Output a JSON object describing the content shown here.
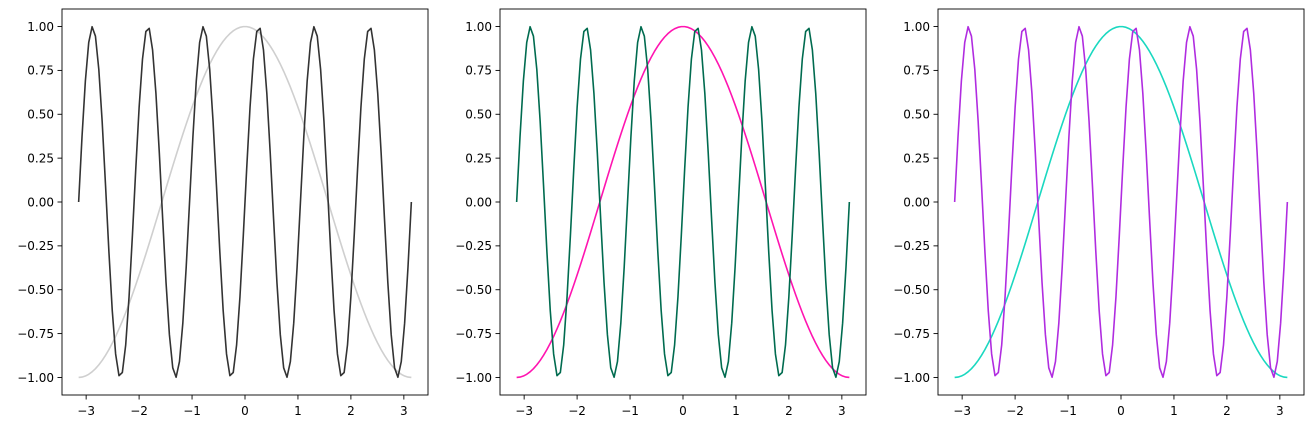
{
  "chart_data": [
    {
      "type": "line",
      "title": "",
      "xlabel": "",
      "ylabel": "",
      "xlim": [
        -3.456,
        3.456
      ],
      "ylim": [
        -1.1,
        1.1
      ],
      "xticks": [
        -3,
        -2,
        -1,
        0,
        1,
        2,
        3
      ],
      "yticks": [
        -1.0,
        -0.75,
        -0.5,
        -0.25,
        0.0,
        0.25,
        0.5,
        0.75,
        1.0
      ],
      "xtick_labels": [
        "−3",
        "−2",
        "−1",
        "0",
        "1",
        "2",
        "3"
      ],
      "ytick_labels": [
        "−1.00",
        "−0.75",
        "−0.50",
        "−0.25",
        "0.00",
        "0.25",
        "0.50",
        "0.75",
        "1.00"
      ],
      "grid": false,
      "series": [
        {
          "function": "cos(x)",
          "x_range": [
            -3.14159,
            3.14159
          ],
          "points": 100,
          "color": "#cfcfcf"
        },
        {
          "function": "sin(6x)",
          "x_range": [
            -3.14159,
            3.14159
          ],
          "points": 100,
          "color": "#333333"
        }
      ]
    },
    {
      "type": "line",
      "title": "",
      "xlabel": "",
      "ylabel": "",
      "xlim": [
        -3.456,
        3.456
      ],
      "ylim": [
        -1.1,
        1.1
      ],
      "xticks": [
        -3,
        -2,
        -1,
        0,
        1,
        2,
        3
      ],
      "yticks": [
        -1.0,
        -0.75,
        -0.5,
        -0.25,
        0.0,
        0.25,
        0.5,
        0.75,
        1.0
      ],
      "xtick_labels": [
        "−3",
        "−2",
        "−1",
        "0",
        "1",
        "2",
        "3"
      ],
      "ytick_labels": [
        "−1.00",
        "−0.75",
        "−0.50",
        "−0.25",
        "0.00",
        "0.25",
        "0.50",
        "0.75",
        "1.00"
      ],
      "grid": false,
      "series": [
        {
          "function": "cos(x)",
          "x_range": [
            -3.14159,
            3.14159
          ],
          "points": 100,
          "color": "#ff14b0"
        },
        {
          "function": "sin(6x)",
          "x_range": [
            -3.14159,
            3.14159
          ],
          "points": 100,
          "color": "#006b4f"
        }
      ]
    },
    {
      "type": "line",
      "title": "",
      "xlabel": "",
      "ylabel": "",
      "xlim": [
        -3.456,
        3.456
      ],
      "ylim": [
        -1.1,
        1.1
      ],
      "xticks": [
        -3,
        -2,
        -1,
        0,
        1,
        2,
        3
      ],
      "yticks": [
        -1.0,
        -0.75,
        -0.5,
        -0.25,
        0.0,
        0.25,
        0.5,
        0.75,
        1.0
      ],
      "xtick_labels": [
        "−3",
        "−2",
        "−1",
        "0",
        "1",
        "2",
        "3"
      ],
      "ytick_labels": [
        "−1.00",
        "−0.75",
        "−0.50",
        "−0.25",
        "0.00",
        "0.25",
        "0.50",
        "0.75",
        "1.00"
      ],
      "grid": false,
      "series": [
        {
          "function": "cos(x)",
          "x_range": [
            -3.14159,
            3.14159
          ],
          "points": 100,
          "color": "#1ad8c0"
        },
        {
          "function": "sin(6x)",
          "x_range": [
            -3.14159,
            3.14159
          ],
          "points": 100,
          "color": "#b02ce0"
        }
      ]
    }
  ]
}
